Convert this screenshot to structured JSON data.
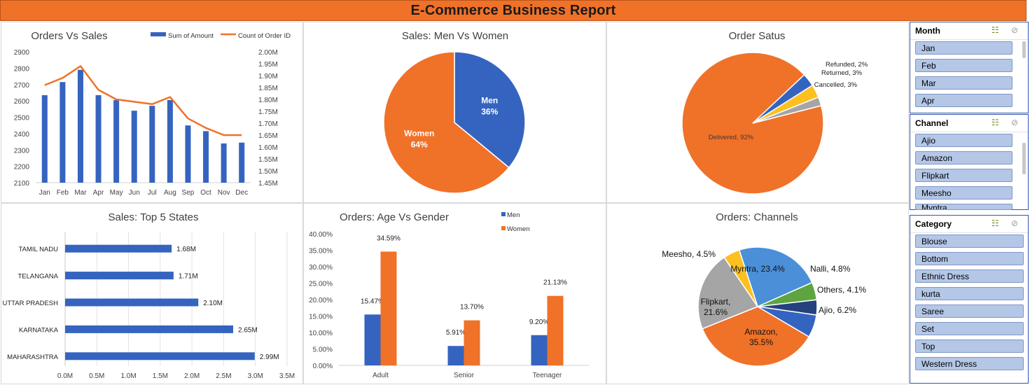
{
  "report_title": "E-Commerce Business Report",
  "chart_data": [
    {
      "id": "orders_vs_sales",
      "type": "bar",
      "title": "Orders Vs Sales",
      "categories": [
        "Jan",
        "Feb",
        "Mar",
        "Apr",
        "May",
        "Jun",
        "Jul",
        "Aug",
        "Sep",
        "Oct",
        "Nov",
        "Dec"
      ],
      "series": [
        {
          "name": "Sum of Amount",
          "type": "bar",
          "axis": "left",
          "color": "#3564c0",
          "values": [
            2635,
            2715,
            2790,
            2635,
            2605,
            2540,
            2570,
            2605,
            2450,
            2415,
            2340,
            2345
          ]
        },
        {
          "name": "Count of Order ID",
          "type": "line",
          "axis": "right",
          "color": "#f07128",
          "values": [
            1.86,
            1.89,
            1.94,
            1.84,
            1.8,
            1.79,
            1.78,
            1.81,
            1.72,
            1.68,
            1.65,
            1.65
          ]
        }
      ],
      "left_axis": {
        "min": 2100,
        "max": 2900,
        "ticks": [
          "2100",
          "2200",
          "2300",
          "2400",
          "2500",
          "2600",
          "2700",
          "2800",
          "2900"
        ]
      },
      "right_axis": {
        "min": 1.45,
        "max": 2.0,
        "ticks": [
          "1.45M",
          "1.50M",
          "1.55M",
          "1.60M",
          "1.65M",
          "1.70M",
          "1.75M",
          "1.80M",
          "1.85M",
          "1.90M",
          "1.95M",
          "2.00M"
        ]
      },
      "legend_position": "top-right",
      "grid": false
    },
    {
      "id": "sales_men_women",
      "type": "pie",
      "title": "Sales: Men Vs Women",
      "slices": [
        {
          "label": "Men",
          "value": 36,
          "value_label": "36%",
          "color": "#3564c0"
        },
        {
          "label": "Women",
          "value": 64,
          "value_label": "64%",
          "color": "#f07128"
        }
      ]
    },
    {
      "id": "order_status",
      "type": "pie",
      "title": "Order Satus",
      "slices": [
        {
          "label": "Delivered, 92%",
          "value": 92,
          "color": "#f07128"
        },
        {
          "label": "Cancelled, 3%",
          "value": 3,
          "color": "#3564c0"
        },
        {
          "label": "Returned, 3%",
          "value": 3,
          "color": "#fcc020"
        },
        {
          "label": "Refunded, 2%",
          "value": 2,
          "color": "#a5a5a5"
        }
      ]
    },
    {
      "id": "top5_states",
      "type": "bar",
      "orientation": "horizontal",
      "title": "Sales: Top 5 States",
      "categories": [
        "TAMIL NADU",
        "TELANGANA",
        "UTTAR PRADESH",
        "KARNATAKA",
        "MAHARASHTRA"
      ],
      "values": [
        1.68,
        1.71,
        2.1,
        2.65,
        2.99
      ],
      "value_labels": [
        "1.68M",
        "1.71M",
        "2.10M",
        "2.65M",
        "2.99M"
      ],
      "color": "#3564c0",
      "x_axis": {
        "min": 0,
        "max": 3.5,
        "ticks": [
          "0.0M",
          "0.5M",
          "1.0M",
          "1.5M",
          "2.0M",
          "2.5M",
          "3.0M",
          "3.5M"
        ]
      },
      "grid": true
    },
    {
      "id": "age_vs_gender",
      "type": "bar",
      "title": "Orders: Age Vs Gender",
      "categories": [
        "Adult",
        "Senior",
        "Teenager"
      ],
      "series": [
        {
          "name": "Men",
          "color": "#3564c0",
          "values": [
            15.47,
            5.91,
            9.2
          ],
          "value_labels": [
            "15.47%",
            "5.91%",
            "9.20%"
          ]
        },
        {
          "name": "Women",
          "color": "#f07128",
          "values": [
            34.59,
            13.7,
            21.13
          ],
          "value_labels": [
            "34.59%",
            "13.70%",
            "21.13%"
          ]
        }
      ],
      "y_axis": {
        "min": 0,
        "max": 40,
        "ticks": [
          "0.00%",
          "5.00%",
          "10.00%",
          "15.00%",
          "20.00%",
          "25.00%",
          "30.00%",
          "35.00%",
          "40.00%"
        ]
      },
      "legend_position": "top-right",
      "grid": false
    },
    {
      "id": "orders_channels",
      "type": "pie",
      "title": "Orders: Channels",
      "slices": [
        {
          "label": "Myntra, 23.4%",
          "value": 23.4,
          "color": "#4a8fd8"
        },
        {
          "label": "Nalli, 4.8%",
          "value": 4.8,
          "color": "#5ea541"
        },
        {
          "label": "Others, 4.1%",
          "value": 4.1,
          "color": "#25427e"
        },
        {
          "label": "Ajio, 6.2%",
          "value": 6.2,
          "color": "#3564c0"
        },
        {
          "label": "Amazon, 35.5%",
          "value": 35.5,
          "color": "#f07128"
        },
        {
          "label": "Flipkart, 21.6%",
          "value": 21.6,
          "color": "#a5a5a5"
        },
        {
          "label": "Meesho, 4.5%",
          "value": 4.5,
          "color": "#fcc020"
        }
      ]
    }
  ],
  "slicers": {
    "month": {
      "title": "Month",
      "items": [
        "Jan",
        "Feb",
        "Mar",
        "Apr"
      ]
    },
    "channel": {
      "title": "Channel",
      "items": [
        "Ajio",
        "Amazon",
        "Flipkart",
        "Meesho",
        "Myntra"
      ]
    },
    "category": {
      "title": "Category",
      "items": [
        "Blouse",
        "Bottom",
        "Ethnic Dress",
        "kurta",
        "Saree",
        "Set",
        "Top",
        "Western Dress"
      ]
    },
    "icons": {
      "multi_select": "multi-select-icon",
      "clear_filter": "clear-filter-icon"
    }
  }
}
